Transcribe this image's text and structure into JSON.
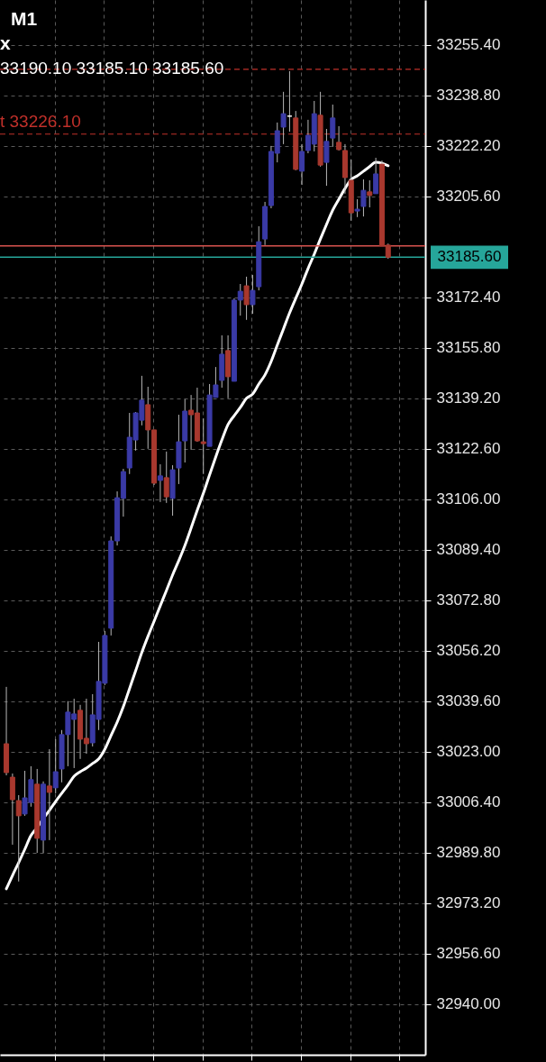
{
  "chart_data": {
    "type": "candlestick",
    "categories": [
      null,
      null,
      null,
      null,
      null,
      null,
      null,
      null,
      null,
      null,
      null,
      null,
      null,
      null,
      null,
      null,
      null,
      null,
      null,
      null,
      null,
      null,
      null,
      null,
      null,
      null,
      null,
      null,
      null,
      null,
      null,
      null,
      null,
      null,
      null,
      null,
      null,
      null,
      null,
      null,
      null,
      null,
      null,
      null,
      null,
      null,
      null,
      null,
      null,
      null,
      null,
      null,
      null,
      null,
      null,
      null,
      null,
      null,
      null,
      null,
      null,
      null,
      null
    ],
    "ohlc": [
      [
        33025.6,
        33044.3,
        33015.2,
        33016.1
      ],
      [
        33014.6,
        33015.8,
        32992.4,
        33007.2
      ],
      [
        33006.9,
        33008.7,
        32980.3,
        33001.9
      ],
      [
        33002.5,
        33016.7,
        33001.9,
        33007.8
      ],
      [
        33006.3,
        33018.2,
        33004.9,
        33013.8
      ],
      [
        33012.3,
        33017.3,
        32989.7,
        32994.5
      ],
      [
        32993.9,
        33013.2,
        32989.7,
        33012.3
      ],
      [
        33011.7,
        33023.8,
        32993.9,
        33009.6
      ],
      [
        33011.1,
        33027.1,
        33009.3,
        33016.4
      ],
      [
        33017.3,
        33030.1,
        33012.9,
        33028.6
      ],
      [
        33028.6,
        33039.6,
        33018.2,
        33036.0
      ],
      [
        33033.6,
        33040.4,
        33017.6,
        33035.4
      ],
      [
        33036.6,
        33038.4,
        33020.6,
        33027.1
      ],
      [
        33027.4,
        33040.4,
        33022.3,
        33025.6
      ],
      [
        33025.9,
        33041.9,
        33024.7,
        33035.1
      ],
      [
        33033.6,
        33059.1,
        33030.1,
        33046.1
      ],
      [
        33045.5,
        33062.7,
        33044.9,
        33061.2
      ],
      [
        33063.6,
        33093.8,
        33061.2,
        33092.3
      ],
      [
        33092.3,
        33108.6,
        33090.8,
        33106.5
      ],
      [
        33106.3,
        33116.0,
        33100.3,
        33115.1
      ],
      [
        33116.3,
        33134.4,
        33114.3,
        33126.4
      ],
      [
        33125.5,
        33134.7,
        33122.0,
        33134.4
      ],
      [
        33132.0,
        33146.6,
        33130.3,
        33138.6
      ],
      [
        33137.1,
        33143.0,
        33122.6,
        33128.8
      ],
      [
        33128.8,
        33128.8,
        33110.7,
        33111.3
      ],
      [
        33112.2,
        33117.5,
        33105.1,
        33113.7
      ],
      [
        33113.1,
        33121.7,
        33104.8,
        33106.8
      ],
      [
        33106.3,
        33117.2,
        33100.6,
        33115.7
      ],
      [
        33116.3,
        33133.8,
        33111.0,
        33124.9
      ],
      [
        33125.2,
        33138.9,
        33118.1,
        33135.0
      ],
      [
        33135.3,
        33140.3,
        33122.3,
        33133.8
      ],
      [
        33134.4,
        33142.7,
        33124.9,
        33125.2
      ],
      [
        33124.9,
        33132.6,
        33114.3,
        33124.3
      ],
      [
        33123.4,
        33143.9,
        33123.4,
        33140.3
      ],
      [
        33139.5,
        33149.5,
        33139.5,
        33143.6
      ],
      [
        33145.1,
        33159.9,
        33142.7,
        33153.7
      ],
      [
        33154.9,
        33159.9,
        33139.2,
        33146.3
      ],
      [
        33144.8,
        33172.1,
        33144.8,
        33171.5
      ],
      [
        33171.5,
        33176.8,
        33166.4,
        33174.4
      ],
      [
        33176.2,
        33179.2,
        33165.0,
        33170.0
      ],
      [
        33170.0,
        33179.8,
        33167.0,
        33174.7
      ],
      [
        33175.9,
        33195.8,
        33174.7,
        33190.7
      ],
      [
        33191.6,
        33203.8,
        33189.6,
        33202.3
      ],
      [
        33202.6,
        33222.2,
        33201.7,
        33220.4
      ],
      [
        33219.8,
        33229.9,
        33216.8,
        33227.2
      ],
      [
        33228.4,
        33240.0,
        33222.8,
        33232.8
      ],
      [
        33232.0,
        33246.8,
        33226.9,
        33232.0
      ],
      [
        33231.4,
        33233.7,
        33214.2,
        33214.5
      ],
      [
        33213.9,
        33222.8,
        33209.4,
        33220.4
      ],
      [
        33220.7,
        33230.8,
        33219.8,
        33225.7
      ],
      [
        33222.8,
        33237.0,
        33220.4,
        33232.8
      ],
      [
        33232.3,
        33240.0,
        33215.4,
        33215.9
      ],
      [
        33216.8,
        33227.8,
        33209.1,
        33223.7
      ],
      [
        33224.8,
        33235.8,
        33221.9,
        33231.4
      ],
      [
        33223.4,
        33228.7,
        33220.7,
        33221.0
      ],
      [
        33220.7,
        33222.8,
        33206.5,
        33211.8
      ],
      [
        33210.9,
        33217.7,
        33197.6,
        33200.2
      ],
      [
        33200.8,
        33204.7,
        33198.8,
        33201.4
      ],
      [
        33202.3,
        33211.2,
        33199.0,
        33207.6
      ],
      [
        33207.1,
        33210.9,
        33202.0,
        33205.9
      ],
      [
        33206.5,
        33218.3,
        33206.5,
        33213.0
      ],
      [
        33216.2,
        33217.4,
        33189.3,
        33189.3
      ],
      [
        33189.6,
        33190.1,
        33185.1,
        33185.6
      ]
    ],
    "colors": [
      "#a8382e",
      "#a8382e",
      "#a8382e",
      "#3a3aa6",
      "#3a3aa6",
      "#a8382e",
      "#3a3aa6",
      "#a8382e",
      "#3a3aa6",
      "#3a3aa6",
      "#3a3aa6",
      "#3a3aa6",
      "#a8382e",
      "#a8382e",
      "#3a3aa6",
      "#3a3aa6",
      "#3a3aa6",
      "#3a3aa6",
      "#3a3aa6",
      "#3a3aa6",
      "#3a3aa6",
      "#3a3aa6",
      "#3a3aa6",
      "#a8382e",
      "#a8382e",
      "#3a3aa6",
      "#a8382e",
      "#3a3aa6",
      "#3a3aa6",
      "#3a3aa6",
      "#a8382e",
      "#a8382e",
      "#a8382e",
      "#3a3aa6",
      "#3a3aa6",
      "#3a3aa6",
      "#a8382e",
      "#3a3aa6",
      "#3a3aa6",
      "#a8382e",
      "#3a3aa6",
      "#3a3aa6",
      "#3a3aa6",
      "#3a3aa6",
      "#3a3aa6",
      "#3a3aa6",
      "#ffffff",
      "#a8382e",
      "#3a3aa6",
      "#3a3aa6",
      "#3a3aa6",
      "#a8382e",
      "#3a3aa6",
      "#3a3aa6",
      "#a8382e",
      "#a8382e",
      "#a8382e",
      "#3a3aa6",
      "#3a3aa6",
      "#a8382e",
      "#3a3aa6",
      "#a8382e",
      "#a8382e"
    ],
    "series": [
      {
        "type": "line",
        "color": "#ffffff",
        "values": [
          32977.9,
          32982.3,
          32986.5,
          32990.9,
          32995.4,
          32998.0,
          33001.0,
          33003.7,
          33006.6,
          33009.3,
          33012.0,
          33014.9,
          33016.4,
          33017.6,
          33019.1,
          33020.6,
          33023.8,
          33028.3,
          33032.7,
          33037.8,
          33043.7,
          33049.6,
          33055.6,
          33060.9,
          33065.9,
          33071.0,
          33076.0,
          33081.1,
          33085.8,
          33090.8,
          33096.5,
          33102.4,
          33108.0,
          33114.0,
          33119.9,
          33125.5,
          33130.6,
          33133.5,
          33136.2,
          33139.2,
          33140.6,
          33143.9,
          33146.9,
          33151.3,
          33156.7,
          33162.0,
          33167.3,
          33172.1,
          33176.8,
          33181.9,
          33186.6,
          33191.6,
          33196.4,
          33201.1,
          33204.7,
          33208.2,
          33211.2,
          33212.4,
          33213.9,
          33215.4,
          33216.8,
          33216.5,
          33215.7
        ]
      }
    ],
    "ylim": [
      32923.3,
      33270.2
    ],
    "yticks": [
      {
        "value": 32940.0,
        "label": "32940.00"
      },
      {
        "value": 32956.6,
        "label": "32956.60"
      },
      {
        "value": 32973.2,
        "label": "32973.20"
      },
      {
        "value": 32989.8,
        "label": "32989.80"
      },
      {
        "value": 33006.4,
        "label": "33006.40"
      },
      {
        "value": 33023.0,
        "label": "33023.00"
      },
      {
        "value": 33039.6,
        "label": "33039.60"
      },
      {
        "value": 33056.2,
        "label": "33056.20"
      },
      {
        "value": 33072.8,
        "label": "33072.80"
      },
      {
        "value": 33089.4,
        "label": "33089.40"
      },
      {
        "value": 33106.0,
        "label": "33106.00"
      },
      {
        "value": 33122.6,
        "label": "33122.60"
      },
      {
        "value": 33139.2,
        "label": "33139.20"
      },
      {
        "value": 33155.8,
        "label": "33155.80"
      },
      {
        "value": 33172.4,
        "label": "33172.40"
      },
      {
        "value": 33205.6,
        "label": "33205.60"
      },
      {
        "value": 33222.2,
        "label": "33222.20"
      },
      {
        "value": 33238.8,
        "label": "33238.80"
      },
      {
        "value": 33255.4,
        "label": "33255.40"
      }
    ],
    "grid": true,
    "tick_labels": "y",
    "ref_lines": [
      {
        "axis": "y",
        "value": 33247.4,
        "color": "#c0302a",
        "line_style": "dashed"
      },
      {
        "axis": "y",
        "value": 33226.1,
        "label": "t 33226.10",
        "color": "#c0302a",
        "line_style": "dashed"
      },
      {
        "axis": "y",
        "value": 33189.3,
        "color": "#d9534f",
        "line_style": "solid"
      },
      {
        "axis": "y",
        "value": 33185.6,
        "label": "33185.60",
        "color": "#26a69a",
        "line_style": "solid"
      }
    ],
    "annotations": [
      "M1",
      "x",
      "33190.10 33185.10 33185.60"
    ]
  }
}
